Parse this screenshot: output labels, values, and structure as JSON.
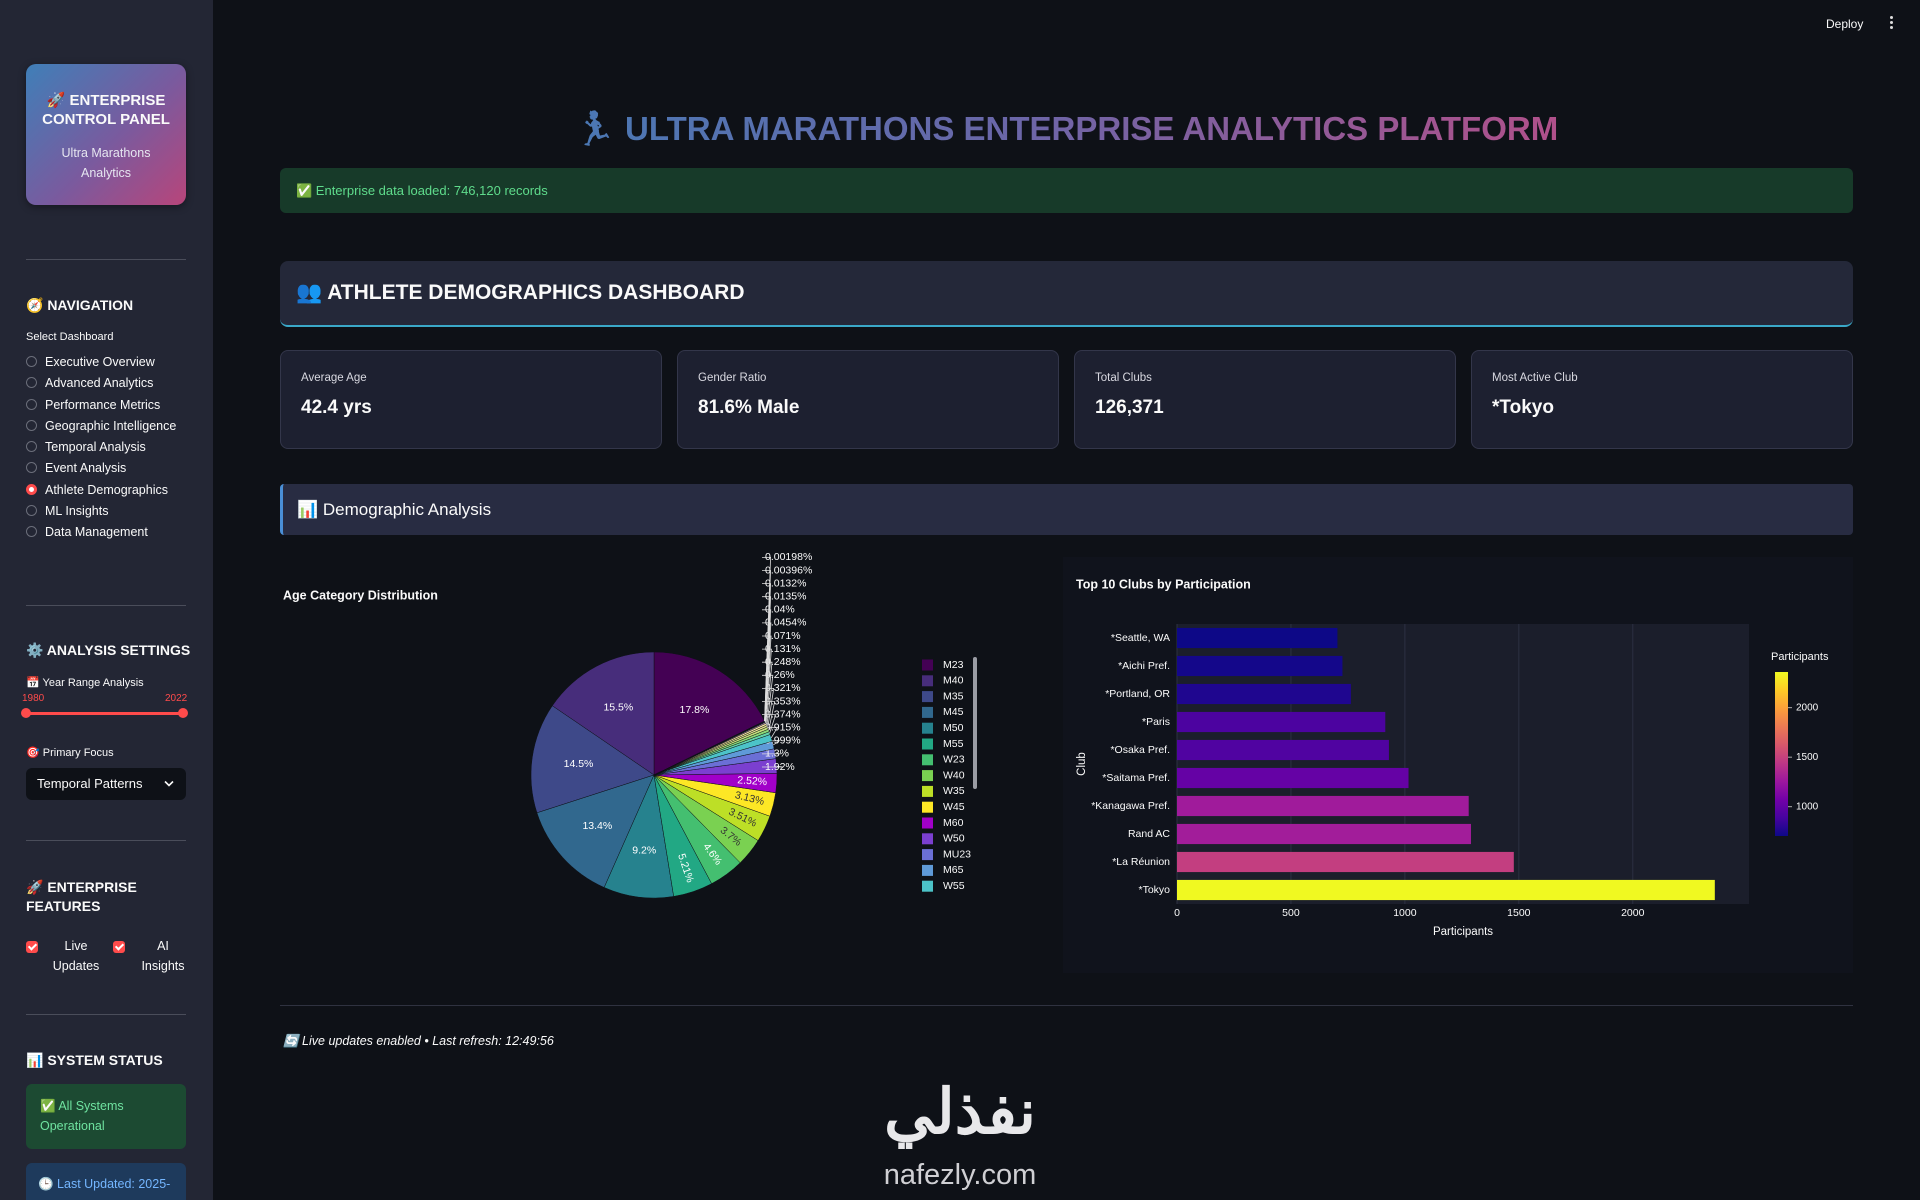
{
  "sidebar": {
    "panel": {
      "title": "🚀 ENTERPRISE CONTROL PANEL",
      "subtitle": "Ultra Marathons Analytics"
    },
    "navigation": {
      "heading": "🧭 NAVIGATION",
      "label": "Select Dashboard",
      "options": [
        "Executive Overview",
        "Advanced Analytics",
        "Performance Metrics",
        "Geographic Intelligence",
        "Temporal Analysis",
        "Event Analysis",
        "Athlete Demographics",
        "ML Insights",
        "Data Management"
      ],
      "selected": 6
    },
    "analysis_settings": {
      "heading": "⚙️ ANALYSIS SETTINGS",
      "year_range_label": "📅 Year Range Analysis",
      "year_range": [
        1980,
        2022
      ],
      "primary_focus_label": "🎯 Primary Focus",
      "primary_focus": "Temporal Patterns"
    },
    "features": {
      "heading": "🚀 ENTERPRISE FEATURES",
      "options": [
        {
          "label": "Live Updates",
          "checked": true
        },
        {
          "label": "AI Insights",
          "checked": true
        }
      ]
    },
    "system_status": {
      "heading": "📊 SYSTEM STATUS",
      "status": "✅ All Systems Operational",
      "last_updated": "🕒 Last Updated: 2025-"
    }
  },
  "toolbar": {
    "deploy": "Deploy"
  },
  "main": {
    "title": "🏃 ULTRA MARATHONS ENTERPRISE ANALYTICS PLATFORM",
    "notice": "✅ Enterprise data loaded: 746,120 records",
    "section": "👥 ATHLETE DEMOGRAPHICS DASHBOARD",
    "metrics": [
      {
        "label": "Average Age",
        "value": "42.4 yrs"
      },
      {
        "label": "Gender Ratio",
        "value": "81.6% Male"
      },
      {
        "label": "Total Clubs",
        "value": "126,371"
      },
      {
        "label": "Most Active Club",
        "value": "*Tokyo"
      }
    ],
    "subsection": "📊 Demographic Analysis",
    "footer": "🔄 Live updates enabled • Last refresh: 12:49:56"
  },
  "watermark": {
    "logo": "نفذلي",
    "site": "nafezly.com"
  },
  "chart_data": [
    {
      "type": "pie",
      "title": "Age Category Distribution",
      "categories": [
        "M23",
        "M40",
        "M35",
        "M45",
        "M50",
        "M55",
        "W23",
        "W40",
        "W35",
        "W45",
        "M60",
        "W50",
        "MU23",
        "M65",
        "W55",
        null,
        null,
        null,
        null,
        null,
        null,
        null,
        null,
        null,
        null,
        null,
        null,
        null
      ],
      "values": [
        17.8,
        15.5,
        14.5,
        13.4,
        9.2,
        5.21,
        4.6,
        3.7,
        3.51,
        3.13,
        2.52,
        1.92,
        1.3,
        0.999,
        0.915,
        0.374,
        0.353,
        0.321,
        0.26,
        0.248,
        0.131,
        0.071,
        0.0454,
        0.04,
        0.0135,
        0.0132,
        0.00396,
        0.00198
      ],
      "value_labels": [
        "17.8%",
        "15.5%",
        "14.5%",
        "13.4%",
        "9.2%",
        "5.21%",
        "4.6%",
        "3.7%",
        "3.51%",
        "3.13%",
        "2.52%",
        "1.92%",
        "1.3%",
        "0.999%",
        "0.915%",
        "0.374%",
        "0.353%",
        "0.321%",
        "0.26%",
        "0.248%",
        "0.131%",
        "0.071%",
        "0.0454%",
        "0.04%",
        "0.0135%",
        "0.0132%",
        "0.00396%",
        "0.00198%"
      ],
      "colors": [
        "#440154",
        "#472d7b",
        "#3e4989",
        "#31688e",
        "#26828e",
        "#22a884",
        "#44bf70",
        "#7ad151",
        "#bddf26",
        "#fde725",
        "#a100c9",
        "#7b3fd0",
        "#6b6fd6",
        "#5f9ad8",
        "#4cc3c8",
        "#62d3a8",
        "#8ad977",
        "#c3e07a",
        "#e3e38e",
        "#f5e6a0",
        "#f2c6e6",
        "#d6a6f2",
        "#b9b8f6",
        "#a6d1f7",
        "#9ee6e6",
        "#a9efc6",
        "#c8f2b0",
        "#ebf3b5"
      ],
      "legend": "right"
    },
    {
      "type": "bar",
      "orientation": "horizontal",
      "title": "Top 10 Clubs by Participation",
      "categories": [
        "*Seattle, WA",
        "*Aichi Pref.",
        "*Portland, OR",
        "*Paris",
        "*Osaka Pref.",
        "*Saitama Pref.",
        "*Kanagawa Pref.",
        "Rand AC",
        "*La Réunion",
        "*Tokyo"
      ],
      "values": [
        704,
        726,
        763,
        914,
        930,
        1016,
        1280,
        1290,
        1478,
        2360
      ],
      "xlim": [
        0,
        2510
      ],
      "xticks": [
        0,
        500,
        1000,
        1500,
        2000
      ],
      "xlabel": "Participants",
      "ylabel": "Club",
      "grid": true,
      "colorscale": [
        "#0d0887",
        "#46039f",
        "#7201a8",
        "#9c179e",
        "#bd3786",
        "#d8576b",
        "#ed7953",
        "#fb9f3a",
        "#fdca26",
        "#f0f921"
      ],
      "colorbar": {
        "title": "Participants",
        "ticks": [
          1000,
          1500,
          2000
        ]
      }
    }
  ]
}
